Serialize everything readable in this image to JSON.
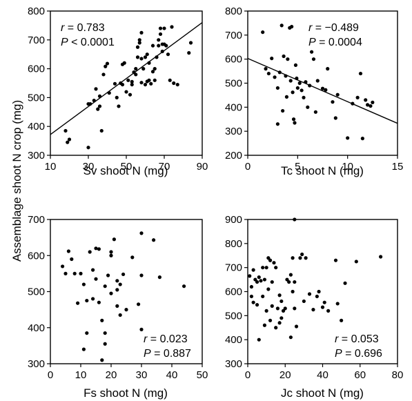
{
  "ylabel": "Assemblage shoot N crop (mg)",
  "chart_data": [
    {
      "type": "scatter",
      "xlabel": "Sv shoot N (mg)",
      "xlim": [
        10,
        90
      ],
      "ylim": [
        300,
        800
      ],
      "xticks": [
        "10",
        "30",
        "50",
        "70",
        "90"
      ],
      "yticks": [
        "300",
        "400",
        "500",
        "600",
        "700",
        "800"
      ],
      "stats": {
        "r": "= 0.783",
        "p": "< 0.0001"
      },
      "fit_line": {
        "x": [
          10,
          90
        ],
        "y": [
          372,
          760
        ]
      },
      "points": [
        [
          18,
          385
        ],
        [
          19,
          345
        ],
        [
          20,
          355
        ],
        [
          30,
          327
        ],
        [
          30,
          478
        ],
        [
          31,
          478
        ],
        [
          33,
          490
        ],
        [
          34,
          530
        ],
        [
          35,
          460
        ],
        [
          36,
          470
        ],
        [
          36,
          505
        ],
        [
          37,
          385
        ],
        [
          38,
          580
        ],
        [
          39,
          608
        ],
        [
          40,
          618
        ],
        [
          41,
          516
        ],
        [
          44,
          548
        ],
        [
          45,
          500
        ],
        [
          46,
          470
        ],
        [
          47,
          550
        ],
        [
          48,
          615
        ],
        [
          49,
          620
        ],
        [
          50,
          520
        ],
        [
          51,
          560
        ],
        [
          52,
          510
        ],
        [
          53,
          555
        ],
        [
          54,
          588
        ],
        [
          55,
          580
        ],
        [
          55,
          600
        ],
        [
          56,
          640
        ],
        [
          56,
          675
        ],
        [
          57,
          690
        ],
        [
          57,
          700
        ],
        [
          58,
          725
        ],
        [
          58,
          635
        ],
        [
          59,
          600
        ],
        [
          60,
          545
        ],
        [
          60,
          640
        ],
        [
          61,
          650
        ],
        [
          62,
          620
        ],
        [
          62,
          560
        ],
        [
          63,
          548
        ],
        [
          64,
          590
        ],
        [
          64,
          680
        ],
        [
          65,
          600
        ],
        [
          65,
          560
        ],
        [
          66,
          640
        ],
        [
          67,
          700
        ],
        [
          67,
          680
        ],
        [
          68,
          720
        ],
        [
          68,
          740
        ],
        [
          69,
          685
        ],
        [
          69,
          660
        ],
        [
          70,
          685
        ],
        [
          70,
          740
        ],
        [
          71,
          680
        ],
        [
          72,
          650
        ],
        [
          73,
          560
        ],
        [
          74,
          745
        ],
        [
          75,
          550
        ],
        [
          77,
          545
        ],
        [
          83,
          655
        ],
        [
          84,
          690
        ],
        [
          53,
          545
        ],
        [
          58,
          552
        ],
        [
          48,
          545
        ],
        [
          61,
          556
        ]
      ]
    },
    {
      "type": "scatter",
      "xlabel": "Tc shoot N (mg)",
      "xlim": [
        0,
        15
      ],
      "ylim": [
        200,
        800
      ],
      "xticks": [
        "0",
        "5",
        "10",
        "15"
      ],
      "yticks": [
        "200",
        "300",
        "400",
        "500",
        "600",
        "700",
        "800"
      ],
      "stats": {
        "r": "= −0.489",
        "p": "= 0.0004"
      },
      "fit_line": {
        "x": [
          0,
          15
        ],
        "y": [
          603,
          333
        ]
      },
      "points": [
        [
          1.5,
          712
        ],
        [
          1.8,
          560
        ],
        [
          2.1,
          540
        ],
        [
          2.4,
          603
        ],
        [
          2.7,
          525
        ],
        [
          3.0,
          480
        ],
        [
          3.0,
          330
        ],
        [
          3.2,
          545
        ],
        [
          3.4,
          740
        ],
        [
          3.5,
          385
        ],
        [
          3.6,
          612
        ],
        [
          3.8,
          530
        ],
        [
          3.9,
          443
        ],
        [
          4.0,
          600
        ],
        [
          4.2,
          730
        ],
        [
          4.3,
          510
        ],
        [
          4.4,
          735
        ],
        [
          4.5,
          462
        ],
        [
          4.6,
          350
        ],
        [
          4.7,
          335
        ],
        [
          4.8,
          575
        ],
        [
          4.9,
          520
        ],
        [
          5.0,
          480
        ],
        [
          5.2,
          500
        ],
        [
          5.4,
          470
        ],
        [
          5.6,
          440
        ],
        [
          5.8,
          505
        ],
        [
          6.0,
          400
        ],
        [
          6.2,
          490
        ],
        [
          6.4,
          630
        ],
        [
          6.6,
          600
        ],
        [
          6.8,
          380
        ],
        [
          7.0,
          510
        ],
        [
          7.5,
          478
        ],
        [
          7.8,
          472
        ],
        [
          8.0,
          560
        ],
        [
          8.5,
          422
        ],
        [
          8.8,
          355
        ],
        [
          9.0,
          452
        ],
        [
          10.0,
          272
        ],
        [
          10.5,
          415
        ],
        [
          11.0,
          440
        ],
        [
          11.3,
          540
        ],
        [
          11.5,
          270
        ],
        [
          11.8,
          430
        ],
        [
          12.0,
          410
        ],
        [
          12.3,
          405
        ],
        [
          12.5,
          420
        ]
      ]
    },
    {
      "type": "scatter",
      "xlabel": "Fs shoot N (mg)",
      "xlim": [
        0,
        50
      ],
      "ylim": [
        300,
        700
      ],
      "xticks": [
        "0",
        "10",
        "20",
        "30",
        "40",
        "50"
      ],
      "yticks": [
        "300",
        "400",
        "500",
        "600",
        "700"
      ],
      "stats": {
        "r": "= 0.023",
        "p": "= 0.887"
      },
      "points": [
        [
          4,
          570
        ],
        [
          5,
          550
        ],
        [
          6,
          612
        ],
        [
          7,
          590
        ],
        [
          8,
          550
        ],
        [
          9,
          468
        ],
        [
          10,
          550
        ],
        [
          11,
          520
        ],
        [
          11,
          340
        ],
        [
          12,
          475
        ],
        [
          12,
          385
        ],
        [
          13,
          610
        ],
        [
          14,
          560
        ],
        [
          14,
          480
        ],
        [
          15,
          620
        ],
        [
          15,
          535
        ],
        [
          16,
          618
        ],
        [
          16,
          470
        ],
        [
          17,
          310
        ],
        [
          17,
          420
        ],
        [
          18,
          385
        ],
        [
          18,
          355
        ],
        [
          18,
          515
        ],
        [
          19,
          545
        ],
        [
          20,
          610
        ],
        [
          20,
          495
        ],
        [
          21,
          645
        ],
        [
          22,
          530
        ],
        [
          22,
          505
        ],
        [
          22,
          460
        ],
        [
          23,
          520
        ],
        [
          23,
          435
        ],
        [
          24,
          548
        ],
        [
          25,
          450
        ],
        [
          27,
          595
        ],
        [
          29,
          465
        ],
        [
          30,
          662
        ],
        [
          30,
          545
        ],
        [
          30,
          395
        ],
        [
          34,
          643
        ],
        [
          36,
          540
        ],
        [
          44,
          515
        ],
        [
          20,
          600
        ]
      ]
    },
    {
      "type": "scatter",
      "xlabel": "Jc shoot N (mg)",
      "xlim": [
        0,
        80
      ],
      "ylim": [
        300,
        900
      ],
      "xticks": [
        "0",
        "20",
        "40",
        "60",
        "80"
      ],
      "yticks": [
        "300",
        "400",
        "500",
        "600",
        "700",
        "800",
        "900"
      ],
      "stats": {
        "r": "= 0.053",
        "p": "= 0.696"
      },
      "points": [
        [
          1,
          665
        ],
        [
          2,
          580
        ],
        [
          2,
          620
        ],
        [
          3,
          555
        ],
        [
          3,
          690
        ],
        [
          4,
          650
        ],
        [
          5,
          640
        ],
        [
          5,
          545
        ],
        [
          6,
          400
        ],
        [
          6,
          660
        ],
        [
          7,
          645
        ],
        [
          8,
          700
        ],
        [
          8,
          580
        ],
        [
          9,
          650
        ],
        [
          9,
          460
        ],
        [
          10,
          520
        ],
        [
          10,
          700
        ],
        [
          11,
          610
        ],
        [
          11,
          740
        ],
        [
          12,
          730
        ],
        [
          12,
          730
        ],
        [
          12,
          480
        ],
        [
          13,
          640
        ],
        [
          13,
          540
        ],
        [
          14,
          720
        ],
        [
          15,
          450
        ],
        [
          15,
          700
        ],
        [
          16,
          530
        ],
        [
          17,
          470
        ],
        [
          18,
          490
        ],
        [
          18,
          560
        ],
        [
          19,
          520
        ],
        [
          20,
          530
        ],
        [
          21,
          650
        ],
        [
          22,
          640
        ],
        [
          23,
          410
        ],
        [
          23,
          670
        ],
        [
          24,
          600
        ],
        [
          24,
          740
        ],
        [
          25,
          900
        ],
        [
          25,
          640
        ],
        [
          25,
          530
        ],
        [
          26,
          455
        ],
        [
          28,
          740
        ],
        [
          29,
          755
        ],
        [
          30,
          560
        ],
        [
          31,
          740
        ],
        [
          33,
          590
        ],
        [
          35,
          525
        ],
        [
          37,
          580
        ],
        [
          38,
          600
        ],
        [
          40,
          535
        ],
        [
          41,
          555
        ],
        [
          43,
          520
        ],
        [
          47,
          730
        ],
        [
          48,
          550
        ],
        [
          50,
          480
        ],
        [
          52,
          635
        ],
        [
          58,
          725
        ],
        [
          71,
          745
        ],
        [
          17,
          585
        ]
      ]
    }
  ]
}
